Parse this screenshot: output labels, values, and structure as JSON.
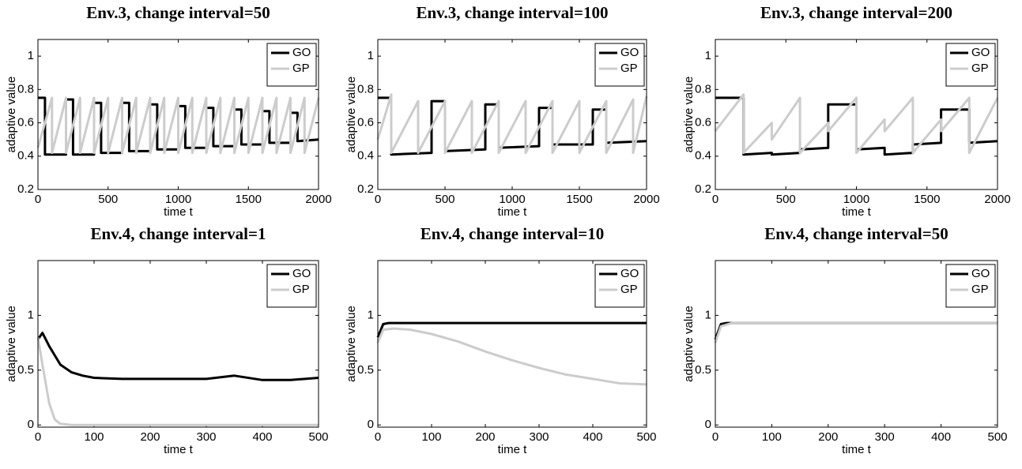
{
  "chart_data": [
    {
      "type": "line",
      "title": "Env.3, change interval=50",
      "xlabel": "time t",
      "ylabel": "adaptive value",
      "xlim": [
        0,
        2000
      ],
      "ylim": [
        0.2,
        1.1
      ],
      "xticks": [
        0,
        500,
        1000,
        1500,
        2000
      ],
      "yticks": [
        0.2,
        0.4,
        0.6,
        0.8,
        1
      ],
      "legend": "upper right",
      "series": [
        {
          "name": "GO",
          "color": "#000000",
          "x": [
            0,
            50,
            50,
            200,
            200,
            250,
            250,
            400,
            400,
            450,
            450,
            600,
            600,
            650,
            650,
            800,
            800,
            850,
            850,
            1000,
            1000,
            1050,
            1050,
            1200,
            1200,
            1250,
            1250,
            1400,
            1400,
            1450,
            1450,
            1600,
            1600,
            1650,
            1650,
            1800,
            1800,
            1850,
            1850,
            2000
          ],
          "values": [
            0.75,
            0.75,
            0.41,
            0.41,
            0.74,
            0.74,
            0.41,
            0.41,
            0.72,
            0.72,
            0.42,
            0.42,
            0.72,
            0.72,
            0.43,
            0.43,
            0.71,
            0.71,
            0.44,
            0.44,
            0.7,
            0.7,
            0.45,
            0.45,
            0.69,
            0.69,
            0.46,
            0.46,
            0.68,
            0.68,
            0.47,
            0.47,
            0.67,
            0.67,
            0.48,
            0.48,
            0.66,
            0.66,
            0.49,
            0.5
          ]
        },
        {
          "name": "GP",
          "color": "#cccccc",
          "x": [
            0,
            100,
            100,
            200,
            200,
            300,
            300,
            400,
            400,
            500,
            500,
            600,
            600,
            700,
            700,
            800,
            800,
            900,
            900,
            1000,
            1000,
            1100,
            1100,
            1200,
            1200,
            1300,
            1300,
            1400,
            1400,
            1500,
            1500,
            1600,
            1600,
            1700,
            1700,
            1800,
            1800,
            1900,
            1900,
            2000
          ],
          "values": [
            0.45,
            0.75,
            0.42,
            0.75,
            0.42,
            0.75,
            0.42,
            0.75,
            0.42,
            0.75,
            0.42,
            0.75,
            0.42,
            0.75,
            0.42,
            0.75,
            0.42,
            0.75,
            0.42,
            0.75,
            0.42,
            0.75,
            0.42,
            0.75,
            0.42,
            0.75,
            0.42,
            0.75,
            0.42,
            0.75,
            0.42,
            0.75,
            0.42,
            0.75,
            0.42,
            0.75,
            0.42,
            0.75,
            0.42,
            0.75
          ]
        }
      ]
    },
    {
      "type": "line",
      "title": "Env.3, change interval=100",
      "xlabel": "time t",
      "ylabel": "adaptive value",
      "xlim": [
        0,
        2000
      ],
      "ylim": [
        0.2,
        1.1
      ],
      "xticks": [
        0,
        500,
        1000,
        1500,
        2000
      ],
      "yticks": [
        0.2,
        0.4,
        0.6,
        0.8,
        1
      ],
      "legend": "upper right",
      "series": [
        {
          "name": "GO",
          "color": "#000000",
          "x": [
            0,
            100,
            100,
            400,
            400,
            500,
            500,
            800,
            800,
            900,
            900,
            1200,
            1200,
            1300,
            1300,
            1600,
            1600,
            1700,
            1700,
            2000
          ],
          "values": [
            0.75,
            0.75,
            0.41,
            0.42,
            0.73,
            0.73,
            0.43,
            0.44,
            0.71,
            0.71,
            0.45,
            0.46,
            0.69,
            0.69,
            0.47,
            0.47,
            0.68,
            0.68,
            0.48,
            0.49
          ]
        },
        {
          "name": "GP",
          "color": "#cccccc",
          "x": [
            0,
            100,
            100,
            300,
            300,
            500,
            500,
            700,
            700,
            900,
            900,
            1100,
            1100,
            1300,
            1300,
            1500,
            1500,
            1700,
            1700,
            1900,
            1900,
            2000
          ],
          "values": [
            0.5,
            0.77,
            0.42,
            0.73,
            0.42,
            0.73,
            0.42,
            0.73,
            0.42,
            0.73,
            0.42,
            0.73,
            0.42,
            0.73,
            0.42,
            0.73,
            0.42,
            0.73,
            0.42,
            0.74,
            0.42,
            0.76
          ]
        }
      ]
    },
    {
      "type": "line",
      "title": "Env.3, change interval=200",
      "xlabel": "time t",
      "ylabel": "adaptive value",
      "xlim": [
        0,
        2000
      ],
      "ylim": [
        0.2,
        1.1
      ],
      "xticks": [
        0,
        500,
        1000,
        1500,
        2000
      ],
      "yticks": [
        0.2,
        0.4,
        0.6,
        0.8,
        1
      ],
      "legend": "upper right",
      "series": [
        {
          "name": "GO",
          "color": "#000000",
          "x": [
            0,
            200,
            200,
            400,
            400,
            600,
            600,
            800,
            800,
            1000,
            1000,
            1200,
            1200,
            1400,
            1400,
            1600,
            1600,
            1800,
            1800,
            2000
          ],
          "values": [
            0.75,
            0.75,
            0.41,
            0.42,
            0.41,
            0.42,
            0.44,
            0.45,
            0.71,
            0.71,
            0.44,
            0.45,
            0.41,
            0.42,
            0.47,
            0.48,
            0.68,
            0.68,
            0.48,
            0.49
          ]
        },
        {
          "name": "GP",
          "color": "#cccccc",
          "x": [
            0,
            200,
            200,
            400,
            400,
            600,
            600,
            800,
            800,
            1000,
            1000,
            1200,
            1200,
            1400,
            1400,
            1600,
            1600,
            1800,
            1800,
            2000
          ],
          "values": [
            0.55,
            0.77,
            0.42,
            0.6,
            0.5,
            0.75,
            0.42,
            0.6,
            0.55,
            0.75,
            0.42,
            0.62,
            0.55,
            0.75,
            0.42,
            0.62,
            0.55,
            0.75,
            0.42,
            0.75
          ]
        }
      ]
    },
    {
      "type": "line",
      "title": "Env.4, change interval=1",
      "xlabel": "time t",
      "ylabel": "adaptive value",
      "xlim": [
        0,
        500
      ],
      "ylim": [
        -0.02,
        1.5
      ],
      "xticks": [
        0,
        100,
        200,
        300,
        400,
        500
      ],
      "yticks": [
        0,
        0.5,
        1
      ],
      "legend": "upper right",
      "series": [
        {
          "name": "GO",
          "color": "#000000",
          "x": [
            0,
            8,
            20,
            40,
            60,
            80,
            100,
            150,
            200,
            250,
            300,
            350,
            400,
            450,
            500
          ],
          "values": [
            0.78,
            0.84,
            0.72,
            0.55,
            0.48,
            0.45,
            0.43,
            0.42,
            0.42,
            0.42,
            0.42,
            0.45,
            0.41,
            0.41,
            0.43
          ]
        },
        {
          "name": "GP",
          "color": "#cccccc",
          "x": [
            0,
            8,
            20,
            30,
            40,
            60,
            500
          ],
          "values": [
            0.8,
            0.55,
            0.2,
            0.05,
            0.01,
            0,
            0
          ]
        }
      ]
    },
    {
      "type": "line",
      "title": "Env.4, change interval=10",
      "xlabel": "time t",
      "ylabel": "adaptive value",
      "xlim": [
        0,
        500
      ],
      "ylim": [
        -0.02,
        1.5
      ],
      "xticks": [
        0,
        100,
        200,
        300,
        400,
        500
      ],
      "yticks": [
        0,
        0.5,
        1
      ],
      "legend": "upper right",
      "series": [
        {
          "name": "GO",
          "color": "#000000",
          "x": [
            0,
            10,
            20,
            100,
            200,
            300,
            400,
            500
          ],
          "values": [
            0.8,
            0.92,
            0.93,
            0.93,
            0.93,
            0.93,
            0.93,
            0.93
          ]
        },
        {
          "name": "GP",
          "color": "#cccccc",
          "x": [
            0,
            10,
            30,
            60,
            100,
            150,
            200,
            250,
            300,
            350,
            400,
            450,
            500
          ],
          "values": [
            0.75,
            0.87,
            0.88,
            0.87,
            0.83,
            0.76,
            0.67,
            0.59,
            0.52,
            0.46,
            0.42,
            0.38,
            0.37
          ]
        }
      ]
    },
    {
      "type": "line",
      "title": "Env.4, change interval=50",
      "xlabel": "time t",
      "ylabel": "adaptive value",
      "xlim": [
        0,
        500
      ],
      "ylim": [
        -0.02,
        1.5
      ],
      "xticks": [
        0,
        100,
        200,
        300,
        400,
        500
      ],
      "yticks": [
        0,
        0.5,
        1
      ],
      "legend": "upper right",
      "series": [
        {
          "name": "GO",
          "color": "#000000",
          "x": [
            0,
            10,
            20,
            500
          ],
          "values": [
            0.78,
            0.92,
            0.93,
            0.93
          ]
        },
        {
          "name": "GP",
          "color": "#cccccc",
          "x": [
            0,
            10,
            30,
            500
          ],
          "values": [
            0.75,
            0.9,
            0.93,
            0.93
          ]
        }
      ]
    }
  ]
}
